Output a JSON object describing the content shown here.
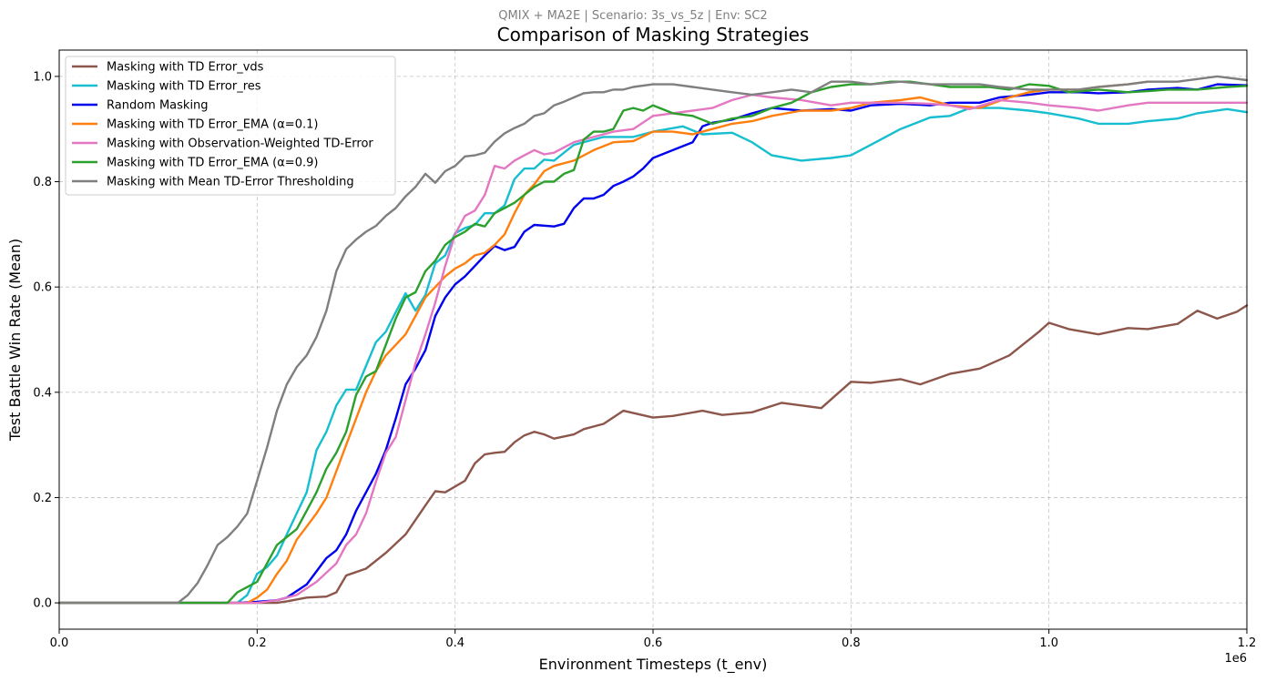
{
  "chart_data": {
    "type": "line",
    "subtitle": "QMIX + MA2E | Scenario: 3s_vs_5z | Env: SC2",
    "title": "Comparison of Masking Strategies",
    "xlabel": "Environment Timesteps (t_env)",
    "ylabel": "Test Battle Win Rate (Mean)",
    "x_offset_text": "1e6",
    "xlim": [
      0,
      1.2
    ],
    "ylim": [
      -0.05,
      1.05
    ],
    "xticks": [
      0.0,
      0.2,
      0.4,
      0.6,
      0.8,
      1.0,
      1.2
    ],
    "xtick_labels": [
      "0.0",
      "0.2",
      "0.4",
      "0.6",
      "0.8",
      "1.0",
      "1.2"
    ],
    "yticks": [
      0.0,
      0.2,
      0.4,
      0.6,
      0.8,
      1.0
    ],
    "ytick_labels": [
      "0.0",
      "0.2",
      "0.4",
      "0.6",
      "0.8",
      "1.0"
    ],
    "grid": true,
    "legend_position": "upper-left",
    "series": [
      {
        "name": "Masking with TD Error_vds",
        "color": "#8c564b",
        "x": [
          0,
          0.1,
          0.2,
          0.22,
          0.23,
          0.25,
          0.27,
          0.28,
          0.29,
          0.31,
          0.33,
          0.35,
          0.37,
          0.38,
          0.39,
          0.41,
          0.42,
          0.43,
          0.44,
          0.45,
          0.46,
          0.47,
          0.48,
          0.49,
          0.5,
          0.52,
          0.53,
          0.55,
          0.57,
          0.6,
          0.62,
          0.65,
          0.67,
          0.7,
          0.73,
          0.75,
          0.77,
          0.8,
          0.82,
          0.85,
          0.87,
          0.9,
          0.93,
          0.96,
          0.99,
          1.0,
          1.02,
          1.05,
          1.08,
          1.1,
          1.13,
          1.15,
          1.17,
          1.19,
          1.2
        ],
        "y": [
          0,
          0,
          0,
          0,
          0.003,
          0.01,
          0.012,
          0.02,
          0.052,
          0.065,
          0.095,
          0.13,
          0.185,
          0.212,
          0.21,
          0.232,
          0.265,
          0.282,
          0.285,
          0.287,
          0.305,
          0.318,
          0.325,
          0.32,
          0.312,
          0.32,
          0.33,
          0.34,
          0.365,
          0.352,
          0.355,
          0.365,
          0.357,
          0.362,
          0.38,
          0.375,
          0.37,
          0.42,
          0.418,
          0.425,
          0.415,
          0.435,
          0.445,
          0.47,
          0.515,
          0.532,
          0.52,
          0.51,
          0.522,
          0.52,
          0.53,
          0.555,
          0.54,
          0.553,
          0.565
        ]
      },
      {
        "name": "Masking with TD Error_res",
        "color": "#17becf",
        "x": [
          0,
          0.1,
          0.18,
          0.19,
          0.2,
          0.21,
          0.22,
          0.23,
          0.24,
          0.25,
          0.26,
          0.27,
          0.28,
          0.29,
          0.3,
          0.31,
          0.32,
          0.33,
          0.34,
          0.35,
          0.36,
          0.37,
          0.38,
          0.39,
          0.4,
          0.41,
          0.42,
          0.43,
          0.44,
          0.45,
          0.46,
          0.47,
          0.48,
          0.49,
          0.5,
          0.52,
          0.55,
          0.58,
          0.6,
          0.63,
          0.65,
          0.68,
          0.7,
          0.72,
          0.75,
          0.78,
          0.8,
          0.82,
          0.85,
          0.88,
          0.9,
          0.92,
          0.95,
          0.98,
          1.0,
          1.03,
          1.05,
          1.08,
          1.1,
          1.13,
          1.15,
          1.18,
          1.2
        ],
        "y": [
          0,
          0,
          0,
          0.015,
          0.055,
          0.068,
          0.09,
          0.13,
          0.17,
          0.21,
          0.29,
          0.325,
          0.375,
          0.405,
          0.405,
          0.45,
          0.495,
          0.515,
          0.552,
          0.588,
          0.555,
          0.585,
          0.645,
          0.66,
          0.702,
          0.712,
          0.718,
          0.74,
          0.74,
          0.755,
          0.805,
          0.825,
          0.825,
          0.842,
          0.84,
          0.87,
          0.885,
          0.885,
          0.895,
          0.905,
          0.89,
          0.893,
          0.875,
          0.85,
          0.84,
          0.845,
          0.85,
          0.87,
          0.9,
          0.922,
          0.925,
          0.94,
          0.94,
          0.935,
          0.93,
          0.92,
          0.91,
          0.91,
          0.915,
          0.92,
          0.93,
          0.938,
          0.932
        ]
      },
      {
        "name": "Random Masking",
        "color": "#0000ee",
        "x": [
          0,
          0.1,
          0.18,
          0.2,
          0.22,
          0.23,
          0.25,
          0.27,
          0.28,
          0.29,
          0.3,
          0.31,
          0.32,
          0.33,
          0.34,
          0.35,
          0.36,
          0.37,
          0.38,
          0.39,
          0.4,
          0.41,
          0.42,
          0.43,
          0.44,
          0.45,
          0.46,
          0.47,
          0.48,
          0.5,
          0.51,
          0.52,
          0.53,
          0.54,
          0.55,
          0.56,
          0.57,
          0.58,
          0.59,
          0.6,
          0.62,
          0.64,
          0.65,
          0.66,
          0.68,
          0.7,
          0.72,
          0.75,
          0.78,
          0.8,
          0.82,
          0.85,
          0.88,
          0.9,
          0.93,
          0.95,
          0.98,
          1.0,
          1.03,
          1.05,
          1.08,
          1.1,
          1.13,
          1.15,
          1.17,
          1.2
        ],
        "y": [
          0,
          0,
          0,
          0.002,
          0.005,
          0.01,
          0.035,
          0.085,
          0.1,
          0.13,
          0.175,
          0.21,
          0.245,
          0.29,
          0.35,
          0.415,
          0.445,
          0.48,
          0.545,
          0.58,
          0.605,
          0.62,
          0.64,
          0.66,
          0.678,
          0.67,
          0.676,
          0.705,
          0.718,
          0.715,
          0.72,
          0.75,
          0.768,
          0.768,
          0.775,
          0.792,
          0.8,
          0.81,
          0.825,
          0.845,
          0.86,
          0.875,
          0.905,
          0.912,
          0.918,
          0.93,
          0.94,
          0.935,
          0.938,
          0.935,
          0.945,
          0.948,
          0.945,
          0.95,
          0.95,
          0.96,
          0.965,
          0.97,
          0.97,
          0.968,
          0.97,
          0.975,
          0.978,
          0.975,
          0.985,
          0.983
        ]
      },
      {
        "name": "Masking with TD Error_EMA (α=0.1)",
        "color": "#ff7f0e",
        "x": [
          0,
          0.1,
          0.19,
          0.2,
          0.21,
          0.22,
          0.23,
          0.24,
          0.25,
          0.26,
          0.27,
          0.28,
          0.29,
          0.3,
          0.31,
          0.32,
          0.33,
          0.34,
          0.35,
          0.36,
          0.37,
          0.38,
          0.39,
          0.4,
          0.41,
          0.42,
          0.43,
          0.44,
          0.45,
          0.46,
          0.47,
          0.48,
          0.49,
          0.5,
          0.52,
          0.54,
          0.56,
          0.58,
          0.6,
          0.62,
          0.64,
          0.66,
          0.68,
          0.7,
          0.72,
          0.75,
          0.78,
          0.8,
          0.82,
          0.85,
          0.87,
          0.9,
          0.93,
          0.96,
          0.98,
          1.0,
          1.03,
          1.05,
          1.08,
          1.1
        ],
        "y": [
          0,
          0,
          0,
          0.01,
          0.025,
          0.055,
          0.08,
          0.12,
          0.145,
          0.17,
          0.2,
          0.25,
          0.3,
          0.35,
          0.4,
          0.44,
          0.47,
          0.49,
          0.51,
          0.545,
          0.58,
          0.6,
          0.62,
          0.635,
          0.645,
          0.66,
          0.665,
          0.68,
          0.7,
          0.74,
          0.775,
          0.795,
          0.82,
          0.83,
          0.84,
          0.86,
          0.875,
          0.877,
          0.895,
          0.895,
          0.89,
          0.9,
          0.91,
          0.915,
          0.925,
          0.935,
          0.935,
          0.94,
          0.95,
          0.955,
          0.96,
          0.945,
          0.94,
          0.96,
          0.97,
          0.975,
          0.975,
          0.98,
          0.985,
          0.99
        ]
      },
      {
        "name": "Masking with Observation-Weighted TD-Error",
        "color": "#e377c2",
        "x": [
          0,
          0.1,
          0.2,
          0.22,
          0.24,
          0.26,
          0.28,
          0.29,
          0.3,
          0.31,
          0.32,
          0.33,
          0.34,
          0.35,
          0.36,
          0.37,
          0.38,
          0.39,
          0.4,
          0.41,
          0.42,
          0.43,
          0.44,
          0.45,
          0.46,
          0.47,
          0.48,
          0.49,
          0.5,
          0.52,
          0.54,
          0.56,
          0.58,
          0.6,
          0.62,
          0.64,
          0.66,
          0.68,
          0.7,
          0.72,
          0.75,
          0.78,
          0.8,
          0.82,
          0.85,
          0.88,
          0.9,
          0.92,
          0.95,
          0.98,
          1.0,
          1.03,
          1.05,
          1.08,
          1.1,
          1.13,
          1.15,
          1.18,
          1.2
        ],
        "y": [
          0,
          0,
          0,
          0.005,
          0.015,
          0.04,
          0.075,
          0.11,
          0.13,
          0.17,
          0.23,
          0.285,
          0.315,
          0.385,
          0.455,
          0.51,
          0.57,
          0.64,
          0.7,
          0.735,
          0.745,
          0.775,
          0.83,
          0.825,
          0.84,
          0.85,
          0.86,
          0.852,
          0.855,
          0.875,
          0.885,
          0.895,
          0.9,
          0.925,
          0.93,
          0.935,
          0.94,
          0.955,
          0.965,
          0.96,
          0.955,
          0.945,
          0.95,
          0.95,
          0.95,
          0.948,
          0.945,
          0.938,
          0.955,
          0.95,
          0.945,
          0.94,
          0.935,
          0.945,
          0.95,
          0.95,
          0.95,
          0.95,
          0.95
        ]
      },
      {
        "name": "Masking with TD Error_EMA (α=0.9)",
        "color": "#2ca02c",
        "x": [
          0,
          0.1,
          0.17,
          0.18,
          0.19,
          0.2,
          0.21,
          0.22,
          0.23,
          0.24,
          0.25,
          0.26,
          0.27,
          0.28,
          0.29,
          0.3,
          0.31,
          0.32,
          0.33,
          0.34,
          0.35,
          0.36,
          0.37,
          0.38,
          0.39,
          0.4,
          0.41,
          0.42,
          0.43,
          0.44,
          0.45,
          0.46,
          0.47,
          0.48,
          0.49,
          0.5,
          0.51,
          0.52,
          0.53,
          0.54,
          0.55,
          0.56,
          0.57,
          0.58,
          0.59,
          0.6,
          0.62,
          0.64,
          0.66,
          0.68,
          0.7,
          0.72,
          0.74,
          0.76,
          0.78,
          0.8,
          0.82,
          0.84,
          0.86,
          0.88,
          0.9,
          0.92,
          0.94,
          0.96,
          0.98,
          1.0,
          1.02,
          1.05,
          1.08,
          1.1,
          1.12,
          1.15,
          1.18,
          1.2
        ],
        "y": [
          0,
          0,
          0,
          0.02,
          0.03,
          0.04,
          0.075,
          0.11,
          0.125,
          0.14,
          0.175,
          0.21,
          0.255,
          0.285,
          0.325,
          0.395,
          0.43,
          0.44,
          0.49,
          0.54,
          0.58,
          0.59,
          0.63,
          0.65,
          0.68,
          0.695,
          0.705,
          0.72,
          0.715,
          0.74,
          0.75,
          0.76,
          0.775,
          0.79,
          0.8,
          0.8,
          0.815,
          0.822,
          0.88,
          0.895,
          0.895,
          0.9,
          0.935,
          0.94,
          0.935,
          0.945,
          0.93,
          0.925,
          0.91,
          0.92,
          0.925,
          0.94,
          0.95,
          0.97,
          0.98,
          0.985,
          0.985,
          0.99,
          0.99,
          0.985,
          0.98,
          0.98,
          0.98,
          0.975,
          0.985,
          0.982,
          0.97,
          0.975,
          0.97,
          0.972,
          0.975,
          0.975,
          0.98,
          0.982
        ]
      },
      {
        "name": "Masking with Mean TD-Error Thresholding",
        "color": "#7f7f7f",
        "x": [
          0,
          0.1,
          0.12,
          0.13,
          0.14,
          0.15,
          0.16,
          0.17,
          0.18,
          0.19,
          0.2,
          0.21,
          0.22,
          0.23,
          0.24,
          0.25,
          0.26,
          0.27,
          0.28,
          0.29,
          0.3,
          0.31,
          0.32,
          0.33,
          0.34,
          0.35,
          0.36,
          0.37,
          0.38,
          0.39,
          0.4,
          0.41,
          0.42,
          0.43,
          0.44,
          0.45,
          0.46,
          0.47,
          0.48,
          0.49,
          0.5,
          0.51,
          0.52,
          0.53,
          0.54,
          0.55,
          0.56,
          0.57,
          0.58,
          0.6,
          0.62,
          0.64,
          0.66,
          0.68,
          0.7,
          0.72,
          0.74,
          0.76,
          0.78,
          0.8,
          0.82,
          0.85,
          0.88,
          0.9,
          0.93,
          0.95,
          0.98,
          1.0,
          1.03,
          1.05,
          1.08,
          1.1,
          1.13,
          1.15,
          1.17,
          1.2
        ],
        "y": [
          0,
          0,
          0,
          0.015,
          0.038,
          0.072,
          0.11,
          0.125,
          0.145,
          0.17,
          0.232,
          0.295,
          0.365,
          0.415,
          0.448,
          0.47,
          0.505,
          0.555,
          0.63,
          0.672,
          0.69,
          0.705,
          0.716,
          0.735,
          0.75,
          0.772,
          0.79,
          0.815,
          0.798,
          0.82,
          0.83,
          0.848,
          0.85,
          0.855,
          0.876,
          0.892,
          0.902,
          0.91,
          0.925,
          0.93,
          0.945,
          0.952,
          0.96,
          0.968,
          0.97,
          0.97,
          0.975,
          0.975,
          0.98,
          0.985,
          0.985,
          0.98,
          0.975,
          0.97,
          0.965,
          0.97,
          0.975,
          0.97,
          0.99,
          0.99,
          0.985,
          0.99,
          0.985,
          0.985,
          0.985,
          0.98,
          0.975,
          0.975,
          0.975,
          0.98,
          0.985,
          0.99,
          0.99,
          0.995,
          1.0,
          0.993
        ]
      }
    ]
  }
}
